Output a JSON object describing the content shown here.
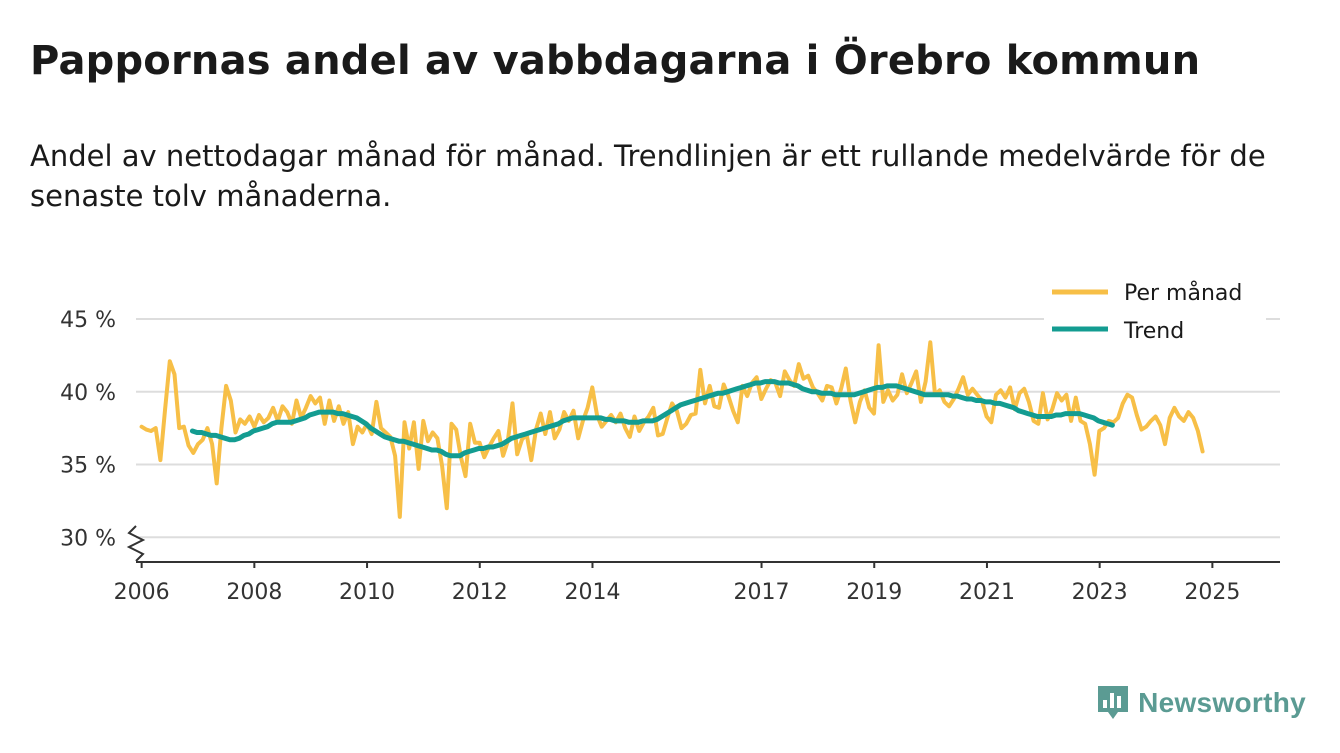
{
  "header": {
    "title": "Pappornas andel av vabbdagarna i Örebro kommun",
    "subtitle": "Andel av nettodagar månad för månad. Trendlinjen är ett rullande medelvärde för de senaste tolv månaderna."
  },
  "brand": {
    "name": "Newsworthy",
    "icon": "newsworthy-logo-icon"
  },
  "colors": {
    "monthly": "#f7bf47",
    "trend": "#139c91",
    "grid": "#dddddd",
    "axis": "#333333",
    "brand": "#5b9b93"
  },
  "chart_data": {
    "type": "line",
    "title": "Pappornas andel av vabbdagarna i Örebro kommun",
    "xlabel": "",
    "ylabel": "",
    "xlim": [
      2005.9,
      2026.2
    ],
    "ylim": [
      28.3,
      45
    ],
    "y_break": true,
    "grid": true,
    "legend_position": "top-right",
    "y_ticks": [
      {
        "value": 30,
        "label": "30 %"
      },
      {
        "value": 35,
        "label": "35 %"
      },
      {
        "value": 40,
        "label": "40 %"
      },
      {
        "value": 45,
        "label": "45 %"
      }
    ],
    "x_ticks": [
      {
        "value": 2006,
        "label": "2006"
      },
      {
        "value": 2008,
        "label": "2008"
      },
      {
        "value": 2010,
        "label": "2010"
      },
      {
        "value": 2012,
        "label": "2012"
      },
      {
        "value": 2014,
        "label": "2014"
      },
      {
        "value": 2017,
        "label": "2017"
      },
      {
        "value": 2019,
        "label": "2019"
      },
      {
        "value": 2021,
        "label": "2021"
      },
      {
        "value": 2023,
        "label": "2023"
      },
      {
        "value": 2025,
        "label": "2025"
      }
    ],
    "series": [
      {
        "name": "Per månad",
        "color": "#f7bf47",
        "start": 2006.0,
        "step": 0.0833,
        "values": [
          37.6,
          37.4,
          37.3,
          37.5,
          35.3,
          38.8,
          42.1,
          41.2,
          37.5,
          37.6,
          36.3,
          35.8,
          36.4,
          36.7,
          37.5,
          36.4,
          33.7,
          37.5,
          40.4,
          39.4,
          37.2,
          38.1,
          37.8,
          38.3,
          37.6,
          38.4,
          37.9,
          38.2,
          38.9,
          38.0,
          39.0,
          38.6,
          37.8,
          39.4,
          38.2,
          38.9,
          39.7,
          39.2,
          39.6,
          37.8,
          39.4,
          38.0,
          39.0,
          37.8,
          38.6,
          36.4,
          37.6,
          37.2,
          37.8,
          37.1,
          39.3,
          37.5,
          37.2,
          36.9,
          35.6,
          31.4,
          37.9,
          36.1,
          37.9,
          34.7,
          38.0,
          36.6,
          37.2,
          36.8,
          34.9,
          32.0,
          37.8,
          37.4,
          35.5,
          34.2,
          37.8,
          36.5,
          36.5,
          35.5,
          36.2,
          36.8,
          37.3,
          35.6,
          36.6,
          39.2,
          35.7,
          36.7,
          37.1,
          35.3,
          37.4,
          38.5,
          37.1,
          38.6,
          36.8,
          37.4,
          38.6,
          38.0,
          38.7,
          36.8,
          38.0,
          38.9,
          40.3,
          38.4,
          37.6,
          38.0,
          38.4,
          37.9,
          38.5,
          37.5,
          36.9,
          38.3,
          37.3,
          37.9,
          38.3,
          38.9,
          37.0,
          37.1,
          38.2,
          39.2,
          38.7,
          37.5,
          37.8,
          38.4,
          38.5,
          41.5,
          39.2,
          40.4,
          39.0,
          38.9,
          40.5,
          39.7,
          38.7,
          37.9,
          40.4,
          39.7,
          40.6,
          41.0,
          39.5,
          40.2,
          40.8,
          40.6,
          39.7,
          41.4,
          40.8,
          40.4,
          41.9,
          40.9,
          41.1,
          40.3,
          39.9,
          39.4,
          40.4,
          40.3,
          39.2,
          40.2,
          41.6,
          39.4,
          37.9,
          39.3,
          40.1,
          38.9,
          38.5,
          43.2,
          39.3,
          40.1,
          39.4,
          39.8,
          41.2,
          39.9,
          40.6,
          41.4,
          39.3,
          40.7,
          43.4,
          39.8,
          40.1,
          39.3,
          39.0,
          39.5,
          40.2,
          41.0,
          39.8,
          40.2,
          39.8,
          39.4,
          38.3,
          37.9,
          39.8,
          40.1,
          39.6,
          40.3,
          38.8,
          39.9,
          40.2,
          39.3,
          38.0,
          37.8,
          39.9,
          38.1,
          38.8,
          39.9,
          39.4,
          39.8,
          38.0,
          39.6,
          38.0,
          37.8,
          36.4,
          34.3,
          37.3,
          37.5,
          38.0,
          37.9,
          38.2,
          39.2,
          39.8,
          39.6,
          38.4,
          37.4,
          37.6,
          38.0,
          38.3,
          37.7,
          36.4,
          38.2,
          38.9,
          38.3,
          38.0,
          38.6,
          38.2,
          37.3,
          35.9
        ]
      },
      {
        "name": "Trend",
        "color": "#139c91",
        "start": 2006.9,
        "step": 0.0833,
        "values": [
          37.3,
          37.2,
          37.2,
          37.1,
          37.0,
          37.0,
          36.9,
          36.8,
          36.7,
          36.7,
          36.8,
          37.0,
          37.1,
          37.3,
          37.4,
          37.5,
          37.6,
          37.8,
          37.9,
          37.9,
          37.9,
          37.9,
          38.0,
          38.1,
          38.2,
          38.4,
          38.5,
          38.6,
          38.6,
          38.6,
          38.6,
          38.5,
          38.5,
          38.4,
          38.3,
          38.2,
          38.0,
          37.8,
          37.5,
          37.3,
          37.1,
          36.9,
          36.8,
          36.7,
          36.6,
          36.6,
          36.5,
          36.4,
          36.3,
          36.2,
          36.1,
          36.0,
          36.0,
          35.9,
          35.7,
          35.6,
          35.6,
          35.6,
          35.8,
          35.9,
          36.0,
          36.1,
          36.1,
          36.2,
          36.2,
          36.3,
          36.4,
          36.6,
          36.8,
          36.9,
          37.0,
          37.1,
          37.2,
          37.3,
          37.4,
          37.5,
          37.6,
          37.7,
          37.8,
          38.0,
          38.1,
          38.2,
          38.2,
          38.2,
          38.2,
          38.2,
          38.2,
          38.2,
          38.1,
          38.1,
          38.0,
          38.0,
          38.0,
          37.9,
          37.9,
          37.9,
          38.0,
          38.0,
          38.0,
          38.1,
          38.3,
          38.5,
          38.7,
          38.9,
          39.1,
          39.2,
          39.3,
          39.4,
          39.5,
          39.6,
          39.7,
          39.8,
          39.9,
          39.9,
          40.0,
          40.1,
          40.2,
          40.3,
          40.4,
          40.5,
          40.6,
          40.6,
          40.7,
          40.7,
          40.7,
          40.6,
          40.6,
          40.6,
          40.5,
          40.4,
          40.2,
          40.1,
          40.0,
          40.0,
          39.9,
          39.9,
          39.9,
          39.8,
          39.8,
          39.8,
          39.8,
          39.8,
          39.9,
          40.0,
          40.1,
          40.2,
          40.3,
          40.3,
          40.4,
          40.4,
          40.4,
          40.3,
          40.2,
          40.1,
          40.0,
          39.9,
          39.8,
          39.8,
          39.8,
          39.8,
          39.8,
          39.8,
          39.7,
          39.7,
          39.6,
          39.5,
          39.5,
          39.4,
          39.4,
          39.3,
          39.3,
          39.2,
          39.2,
          39.1,
          39.0,
          38.9,
          38.7,
          38.6,
          38.5,
          38.4,
          38.3,
          38.3,
          38.3,
          38.3,
          38.4,
          38.4,
          38.5,
          38.5,
          38.5,
          38.5,
          38.4,
          38.3,
          38.2,
          38.0,
          37.9,
          37.8,
          37.7
        ]
      }
    ]
  }
}
